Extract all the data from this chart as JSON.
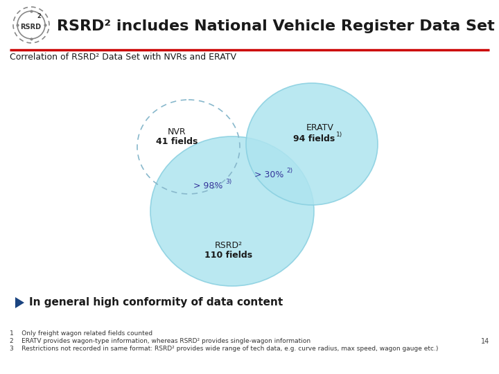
{
  "title": "RSRD² includes National Vehicle Register Data Set",
  "subtitle": "Correlation of RSRD² Data Set with NVRs and ERATV",
  "bg_color": "#ffffff",
  "circle_fill": "#aee4ef",
  "circle_edge": "#88cfe0",
  "nvr_label": "NVR",
  "nvr_fields": "41 fields",
  "eratv_label": "ERATV",
  "eratv_fields": "94 fields",
  "eratv_superscript": "1)",
  "rsrd_label": "RSRD²",
  "rsrd_fields": "110 fields",
  "overlap_nvr_rsrd": "> 98%",
  "overlap_nvr_rsrd_sup": "3)",
  "overlap_eratv_rsrd": "> 30%",
  "overlap_eratv_rsrd_sup": "2)",
  "footnote1": "1    Only freight wagon related fields counted",
  "footnote2": "2    ERATV provides wagon-type information, whereas RSRD² provides single-wagon information",
  "footnote3": "3    Restrictions not recorded in same format: RSRD² provides wide range of tech data, e.g. curve radius, max speed, wagon gauge etc.)",
  "bullet_text": "In general high conformity of data content",
  "page_number": "14",
  "line_color": "#cc0000",
  "title_fontsize": 16,
  "subtitle_fontsize": 9,
  "label_fontsize": 9,
  "footnote_fontsize": 6.5,
  "bullet_fontsize": 11
}
